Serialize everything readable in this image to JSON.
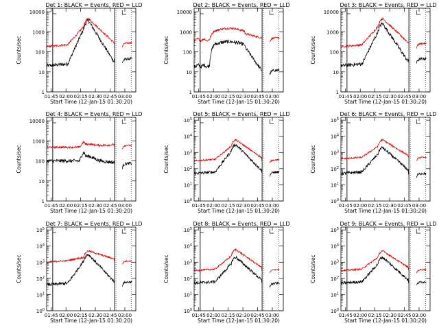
{
  "figure": {
    "xlabel": "Start Time (12-Jan-15 01:30:20)",
    "ylabel": "Counts/sec",
    "xticks": [
      "01:45",
      "02:00",
      "02:15",
      "02:30",
      "02:45",
      "03:00"
    ],
    "colors": {
      "events": "#000000",
      "lld": "#dd0000",
      "axes": "#000000"
    }
  },
  "chart_data": [
    {
      "type": "line",
      "title": "Det 1: BLACK = Events, RED = LLD",
      "scale": "log",
      "ylim": [
        1,
        15000
      ],
      "yticks": [
        "1",
        "10",
        "100",
        "1000",
        "10000"
      ],
      "series": [
        {
          "name": "Events",
          "shape": "flare",
          "base": 20,
          "peak": 3500,
          "post": 45
        },
        {
          "name": "LLD",
          "shape": "flare",
          "base": 180,
          "peak": 4500,
          "post": 280
        }
      ]
    },
    {
      "type": "line",
      "title": "Det 2: BLACK = Events, RED = LLD",
      "scale": "log",
      "ylim": [
        1,
        15000
      ],
      "yticks": [
        "1",
        "10",
        "100",
        "1000",
        "10000"
      ],
      "series": [
        {
          "name": "Events",
          "shape": "broad",
          "base": 20,
          "peak": 320,
          "post": 12
        },
        {
          "name": "LLD",
          "shape": "broad",
          "base": 400,
          "peak": 1500,
          "post": 500
        }
      ]
    },
    {
      "type": "line",
      "title": "Det 3: BLACK = Events, RED = LLD",
      "scale": "log",
      "ylim": [
        1,
        15000
      ],
      "yticks": [
        "1",
        "10",
        "100",
        "1000",
        "10000"
      ],
      "series": [
        {
          "name": "Events",
          "shape": "flare",
          "base": 20,
          "peak": 2500,
          "post": 45
        },
        {
          "name": "LLD",
          "shape": "flare",
          "base": 180,
          "peak": 4500,
          "post": 260
        }
      ]
    },
    {
      "type": "line",
      "title": "Det 4: BLACK = Events, RED = LLD",
      "scale": "log",
      "ylim": [
        1,
        15000
      ],
      "yticks": [
        "1",
        "10",
        "100",
        "1000",
        "10000"
      ],
      "series": [
        {
          "name": "Events",
          "shape": "flat",
          "base": 100,
          "peak": 260,
          "post": 75
        },
        {
          "name": "LLD",
          "shape": "flat",
          "base": 480,
          "peak": 850,
          "post": 600
        }
      ]
    },
    {
      "type": "line",
      "title": "Det 5: BLACK = Events, RED = LLD",
      "scale": "log",
      "ylim": [
        1,
        150000
      ],
      "yticks": [
        "10^0",
        "10^1",
        "10^2",
        "10^3",
        "10^4",
        "10^5"
      ],
      "series": [
        {
          "name": "Events",
          "shape": "flare",
          "base": 50,
          "peak": 3000,
          "post": 60
        },
        {
          "name": "LLD",
          "shape": "flare",
          "base": 300,
          "peak": 6000,
          "post": 350
        }
      ]
    },
    {
      "type": "line",
      "title": "Det 6: BLACK = Events, RED = LLD",
      "scale": "log",
      "ylim": [
        1,
        150000
      ],
      "yticks": [
        "10^0",
        "10^1",
        "10^2",
        "10^3",
        "10^4",
        "10^5"
      ],
      "series": [
        {
          "name": "Events",
          "shape": "flare",
          "base": 50,
          "peak": 2000,
          "post": 50
        },
        {
          "name": "LLD",
          "shape": "flare",
          "base": 400,
          "peak": 6000,
          "post": 500
        }
      ]
    },
    {
      "type": "line",
      "title": "Det 7: BLACK = Events, RED = LLD",
      "scale": "log",
      "ylim": [
        1,
        150000
      ],
      "yticks": [
        "10^0",
        "10^1",
        "10^2",
        "10^3",
        "10^4",
        "10^5"
      ],
      "series": [
        {
          "name": "Events",
          "shape": "flare",
          "base": 40,
          "peak": 3000,
          "post": 60
        },
        {
          "name": "LLD",
          "shape": "flare",
          "base": 1000,
          "peak": 5000,
          "post": 1200
        }
      ]
    },
    {
      "type": "line",
      "title": "Det 8: BLACK = Events, RED = LLD",
      "scale": "log",
      "ylim": [
        1,
        150000
      ],
      "yticks": [
        "10^0",
        "10^1",
        "10^2",
        "10^3",
        "10^4",
        "10^5"
      ],
      "series": [
        {
          "name": "Events",
          "shape": "flare",
          "base": 50,
          "peak": 2000,
          "post": 50
        },
        {
          "name": "LLD",
          "shape": "flare",
          "base": 300,
          "peak": 6000,
          "post": 350
        }
      ]
    },
    {
      "type": "line",
      "title": "Det 9: BLACK = Events, RED = LLD",
      "scale": "log",
      "ylim": [
        1,
        150000
      ],
      "yticks": [
        "10^0",
        "10^1",
        "10^2",
        "10^3",
        "10^4",
        "10^5"
      ],
      "series": [
        {
          "name": "Events",
          "shape": "flare",
          "base": 50,
          "peak": 2000,
          "post": 60
        },
        {
          "name": "LLD",
          "shape": "flare",
          "base": 300,
          "peak": 5000,
          "post": 350
        }
      ]
    }
  ]
}
